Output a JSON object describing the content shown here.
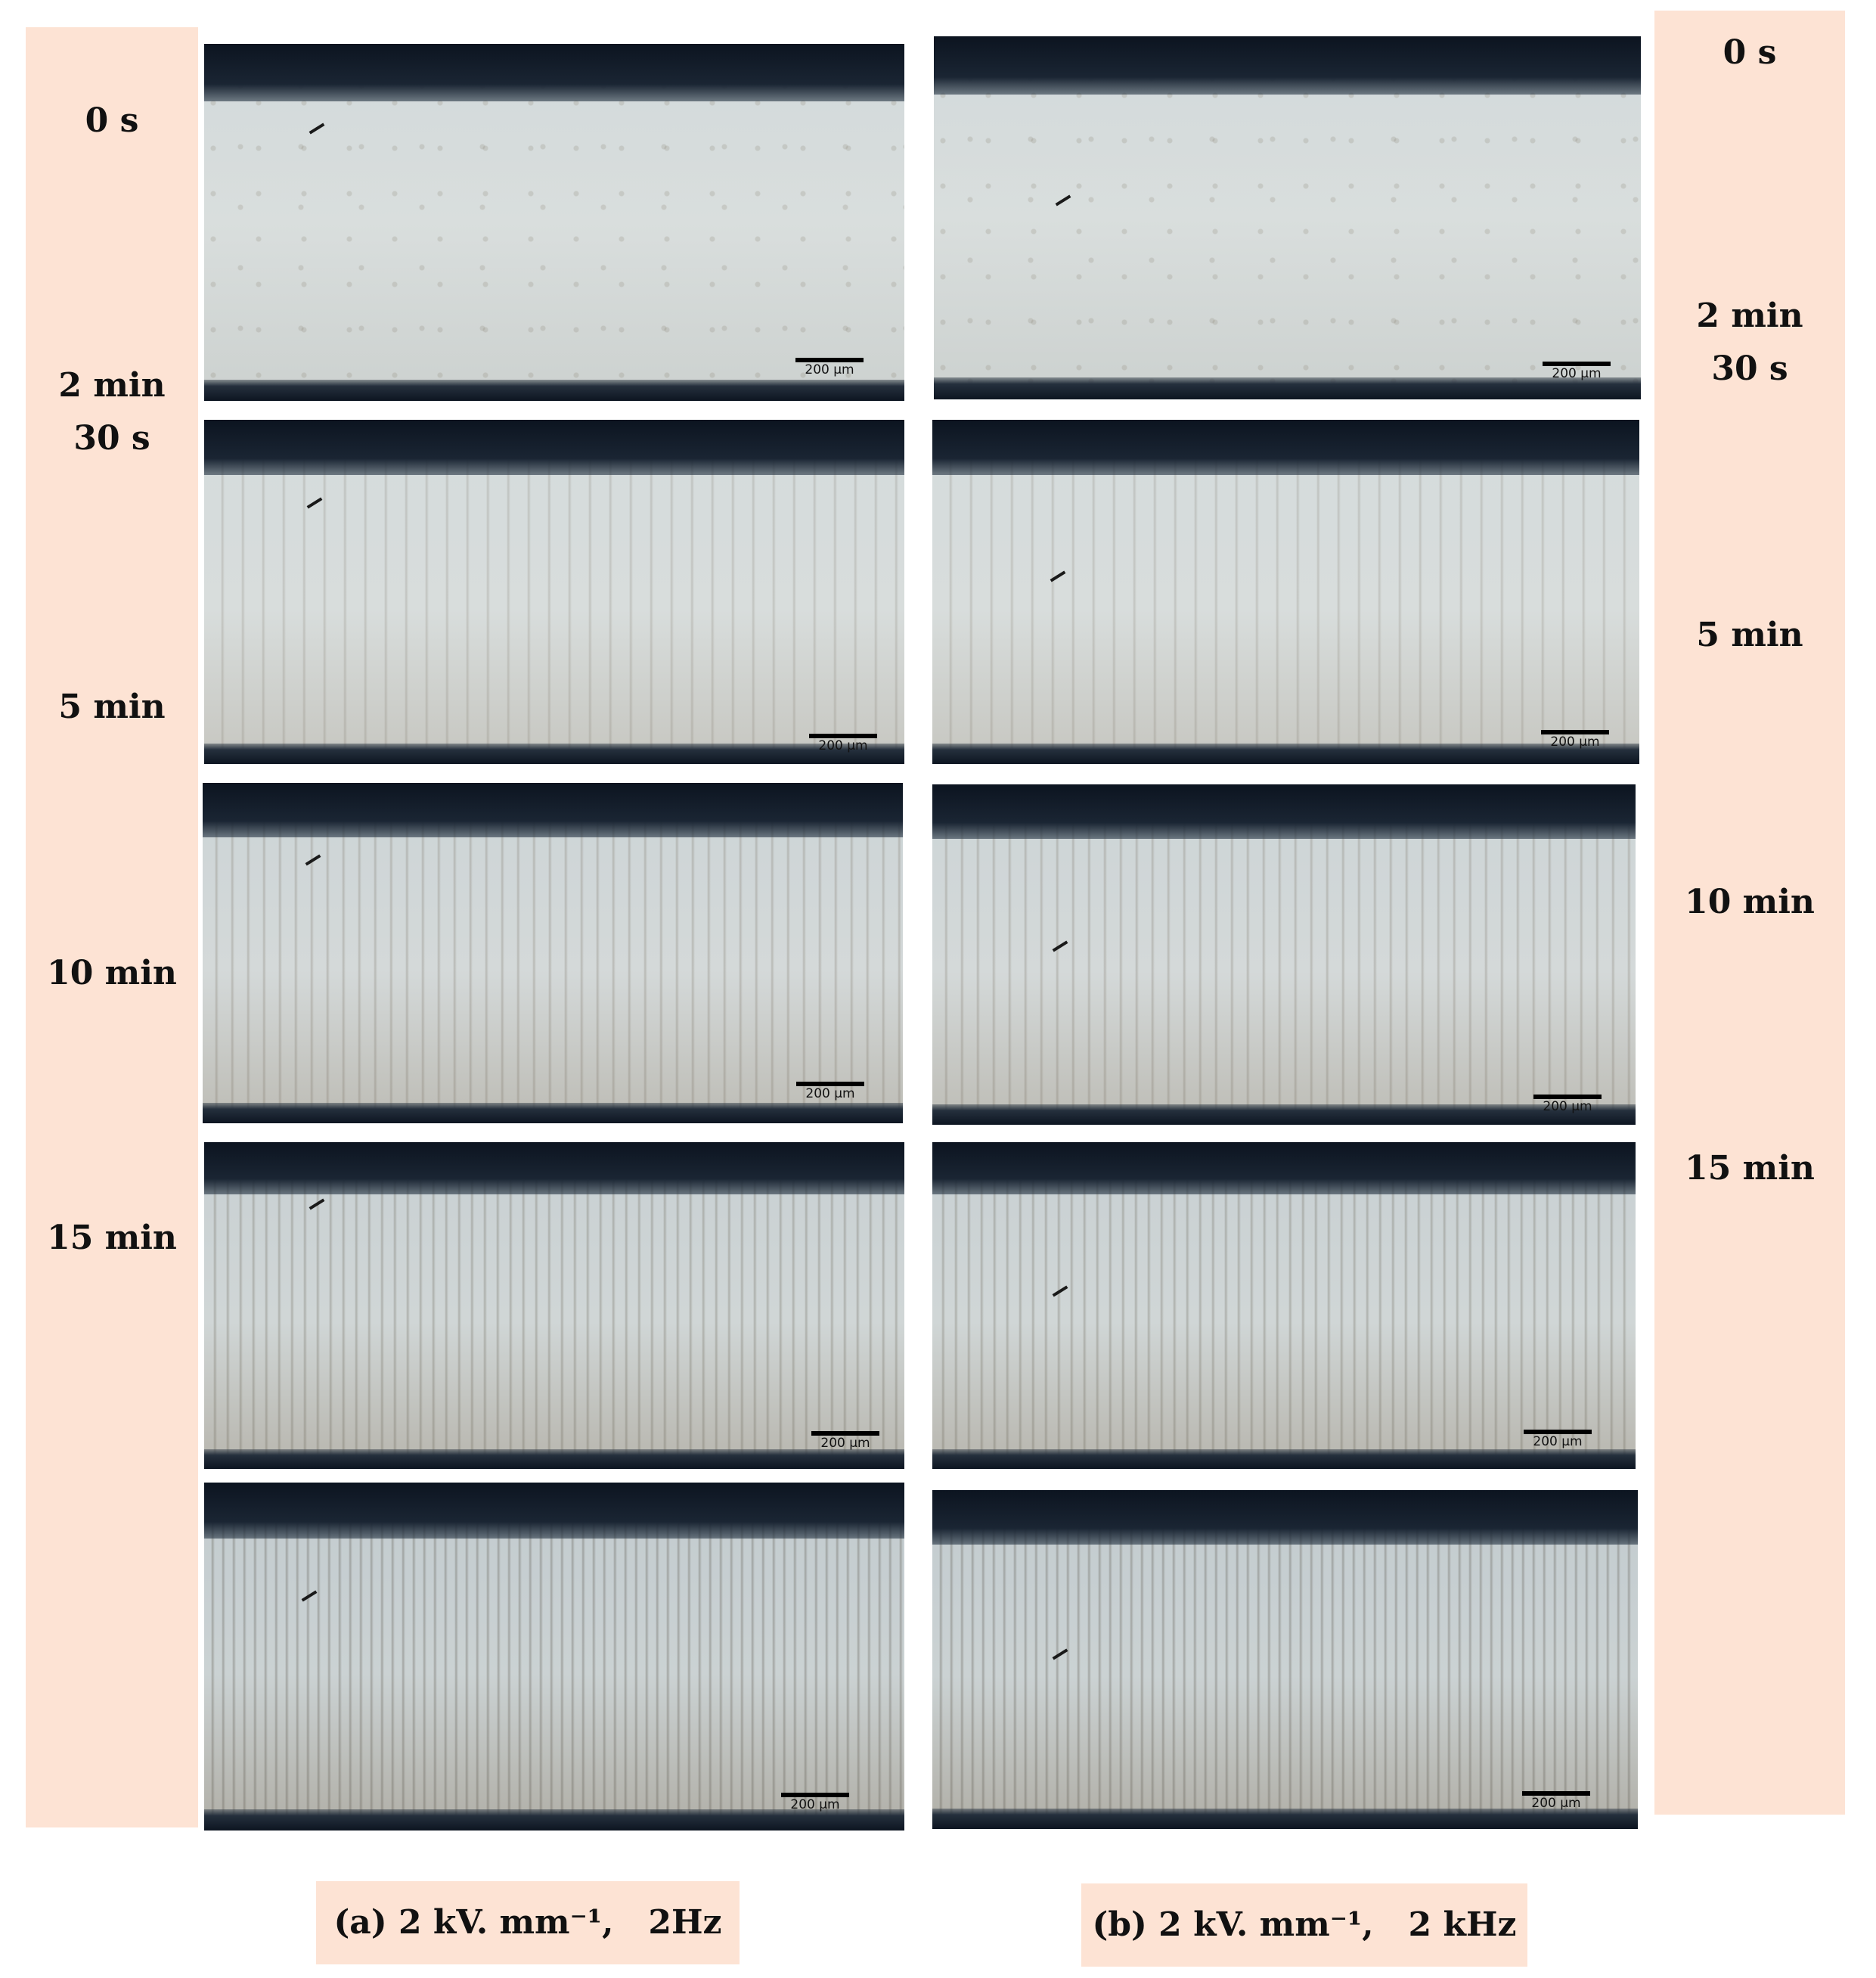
{
  "left_timeline": [
    "0 s",
    "2 min\n30 s",
    "5 min",
    "10 min",
    "15 min"
  ],
  "right_timeline": [
    "0 s",
    "2 min\n30 s",
    "5 min",
    "10 min",
    "15 min"
  ],
  "scale_bar_label": "200 µm",
  "captions": {
    "a": "(a) 2 kV. mm⁻¹,   2Hz",
    "b": "(b) 2 kV. mm⁻¹,   2 kHz"
  },
  "colors": {
    "label_band": "#fde3d4",
    "electrode": "#0c1420"
  }
}
